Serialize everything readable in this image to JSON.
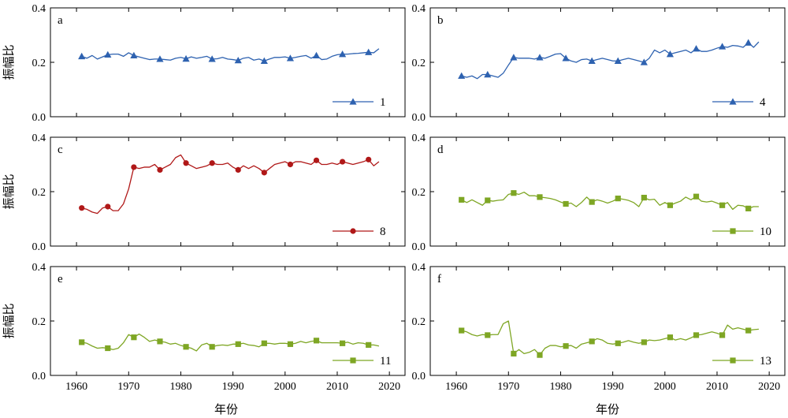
{
  "figure": {
    "x_axis_title": "年份",
    "y_axis_title": "振幅比"
  },
  "chart_data": [
    {
      "type": "line",
      "panel": "a",
      "column": 0,
      "row": 0,
      "xlim": [
        1955,
        2023
      ],
      "ylim": [
        0,
        0.4
      ],
      "xticks": [
        1960,
        1970,
        1980,
        1990,
        2000,
        2010,
        2020
      ],
      "yticks": [
        0.0,
        0.2,
        0.4
      ],
      "show_x_tick_labels": false,
      "legend_position": "bottom-right",
      "series": [
        {
          "name": "1",
          "color": "#2e62b0",
          "marker": "triangle",
          "x": [
            1961,
            1962,
            1963,
            1964,
            1965,
            1966,
            1967,
            1968,
            1969,
            1970,
            1971,
            1972,
            1973,
            1974,
            1975,
            1976,
            1977,
            1978,
            1979,
            1980,
            1981,
            1982,
            1983,
            1984,
            1985,
            1986,
            1987,
            1988,
            1989,
            1990,
            1991,
            1992,
            1993,
            1994,
            1995,
            1996,
            1997,
            1998,
            1999,
            2000,
            2001,
            2002,
            2003,
            2004,
            2005,
            2006,
            2007,
            2008,
            2009,
            2010,
            2011,
            2012,
            2013,
            2014,
            2015,
            2016,
            2017,
            2018
          ],
          "y": [
            0.222,
            0.215,
            0.225,
            0.212,
            0.22,
            0.228,
            0.23,
            0.23,
            0.222,
            0.235,
            0.225,
            0.22,
            0.215,
            0.21,
            0.212,
            0.212,
            0.21,
            0.208,
            0.215,
            0.218,
            0.213,
            0.22,
            0.215,
            0.218,
            0.222,
            0.212,
            0.213,
            0.218,
            0.212,
            0.21,
            0.207,
            0.215,
            0.218,
            0.208,
            0.212,
            0.205,
            0.212,
            0.218,
            0.218,
            0.22,
            0.215,
            0.218,
            0.222,
            0.225,
            0.215,
            0.225,
            0.21,
            0.212,
            0.222,
            0.228,
            0.23,
            0.23,
            0.232,
            0.233,
            0.235,
            0.237,
            0.235,
            0.25
          ],
          "marker_x": [
            1961,
            1966,
            1971,
            1976,
            1981,
            1986,
            1991,
            1996,
            2001,
            2006,
            2011,
            2016
          ]
        }
      ]
    },
    {
      "type": "line",
      "panel": "b",
      "column": 1,
      "row": 0,
      "xlim": [
        1955,
        2023
      ],
      "ylim": [
        0,
        0.4
      ],
      "xticks": [
        1960,
        1970,
        1980,
        1990,
        2000,
        2010,
        2020
      ],
      "yticks": [
        0.0,
        0.2,
        0.4
      ],
      "show_x_tick_labels": false,
      "legend_position": "bottom-right",
      "series": [
        {
          "name": "4",
          "color": "#2e62b0",
          "marker": "triangle",
          "x": [
            1961,
            1962,
            1963,
            1964,
            1965,
            1966,
            1967,
            1968,
            1969,
            1970,
            1971,
            1972,
            1973,
            1974,
            1975,
            1976,
            1977,
            1978,
            1979,
            1980,
            1981,
            1982,
            1983,
            1984,
            1985,
            1986,
            1987,
            1988,
            1989,
            1990,
            1991,
            1992,
            1993,
            1994,
            1995,
            1996,
            1997,
            1998,
            1999,
            2000,
            2001,
            2002,
            2003,
            2004,
            2005,
            2006,
            2007,
            2008,
            2009,
            2010,
            2011,
            2012,
            2013,
            2014,
            2015,
            2016,
            2017,
            2018
          ],
          "y": [
            0.15,
            0.145,
            0.15,
            0.14,
            0.155,
            0.155,
            0.15,
            0.145,
            0.16,
            0.19,
            0.218,
            0.215,
            0.215,
            0.215,
            0.212,
            0.218,
            0.215,
            0.222,
            0.23,
            0.232,
            0.215,
            0.205,
            0.2,
            0.21,
            0.212,
            0.205,
            0.21,
            0.215,
            0.21,
            0.205,
            0.205,
            0.21,
            0.215,
            0.21,
            0.205,
            0.2,
            0.215,
            0.245,
            0.235,
            0.245,
            0.23,
            0.235,
            0.24,
            0.245,
            0.235,
            0.25,
            0.24,
            0.24,
            0.245,
            0.252,
            0.258,
            0.255,
            0.262,
            0.26,
            0.255,
            0.272,
            0.255,
            0.275
          ],
          "marker_x": [
            1961,
            1966,
            1971,
            1976,
            1981,
            1986,
            1991,
            1996,
            2001,
            2006,
            2011,
            2016
          ]
        }
      ]
    },
    {
      "type": "line",
      "panel": "c",
      "column": 0,
      "row": 1,
      "xlim": [
        1955,
        2023
      ],
      "ylim": [
        0,
        0.4
      ],
      "xticks": [
        1960,
        1970,
        1980,
        1990,
        2000,
        2010,
        2020
      ],
      "yticks": [
        0.0,
        0.2,
        0.4
      ],
      "show_x_tick_labels": false,
      "legend_position": "bottom-right",
      "series": [
        {
          "name": "8",
          "color": "#b01818",
          "marker": "circle",
          "x": [
            1961,
            1962,
            1963,
            1964,
            1965,
            1966,
            1967,
            1968,
            1969,
            1970,
            1971,
            1972,
            1973,
            1974,
            1975,
            1976,
            1977,
            1978,
            1979,
            1980,
            1981,
            1982,
            1983,
            1984,
            1985,
            1986,
            1987,
            1988,
            1989,
            1990,
            1991,
            1992,
            1993,
            1994,
            1995,
            1996,
            1997,
            1998,
            1999,
            2000,
            2001,
            2002,
            2003,
            2004,
            2005,
            2006,
            2007,
            2008,
            2009,
            2010,
            2011,
            2012,
            2013,
            2014,
            2015,
            2016,
            2017,
            2018
          ],
          "y": [
            0.14,
            0.135,
            0.125,
            0.12,
            0.14,
            0.145,
            0.13,
            0.13,
            0.155,
            0.21,
            0.29,
            0.285,
            0.29,
            0.29,
            0.3,
            0.28,
            0.29,
            0.3,
            0.325,
            0.335,
            0.305,
            0.295,
            0.285,
            0.29,
            0.295,
            0.305,
            0.3,
            0.3,
            0.305,
            0.29,
            0.28,
            0.295,
            0.285,
            0.295,
            0.285,
            0.27,
            0.285,
            0.3,
            0.305,
            0.31,
            0.3,
            0.31,
            0.31,
            0.305,
            0.3,
            0.315,
            0.3,
            0.3,
            0.305,
            0.3,
            0.31,
            0.305,
            0.3,
            0.305,
            0.31,
            0.318,
            0.295,
            0.31
          ],
          "marker_x": [
            1961,
            1966,
            1971,
            1976,
            1981,
            1986,
            1991,
            1996,
            2001,
            2006,
            2011,
            2016
          ]
        }
      ]
    },
    {
      "type": "line",
      "panel": "d",
      "column": 1,
      "row": 1,
      "xlim": [
        1955,
        2023
      ],
      "ylim": [
        0,
        0.4
      ],
      "xticks": [
        1960,
        1970,
        1980,
        1990,
        2000,
        2010,
        2020
      ],
      "yticks": [
        0.0,
        0.2,
        0.4
      ],
      "show_x_tick_labels": false,
      "legend_position": "bottom-right",
      "series": [
        {
          "name": "10",
          "color": "#7ea624",
          "marker": "square",
          "x": [
            1961,
            1962,
            1963,
            1964,
            1965,
            1966,
            1967,
            1968,
            1969,
            1970,
            1971,
            1972,
            1973,
            1974,
            1975,
            1976,
            1977,
            1978,
            1979,
            1980,
            1981,
            1982,
            1983,
            1984,
            1985,
            1986,
            1987,
            1988,
            1989,
            1990,
            1991,
            1992,
            1993,
            1994,
            1995,
            1996,
            1997,
            1998,
            1999,
            2000,
            2001,
            2002,
            2003,
            2004,
            2005,
            2006,
            2007,
            2008,
            2009,
            2010,
            2011,
            2012,
            2013,
            2014,
            2015,
            2016,
            2017,
            2018
          ],
          "y": [
            0.17,
            0.16,
            0.17,
            0.16,
            0.15,
            0.168,
            0.165,
            0.168,
            0.17,
            0.19,
            0.195,
            0.19,
            0.198,
            0.185,
            0.185,
            0.18,
            0.178,
            0.175,
            0.17,
            0.162,
            0.155,
            0.158,
            0.145,
            0.16,
            0.18,
            0.162,
            0.17,
            0.165,
            0.158,
            0.165,
            0.175,
            0.172,
            0.168,
            0.16,
            0.145,
            0.178,
            0.17,
            0.172,
            0.15,
            0.16,
            0.15,
            0.158,
            0.165,
            0.18,
            0.17,
            0.182,
            0.165,
            0.162,
            0.165,
            0.158,
            0.15,
            0.16,
            0.135,
            0.15,
            0.148,
            0.138,
            0.145,
            0.145
          ],
          "marker_x": [
            1961,
            1966,
            1971,
            1976,
            1981,
            1986,
            1991,
            1996,
            2001,
            2006,
            2011,
            2016
          ]
        }
      ]
    },
    {
      "type": "line",
      "panel": "e",
      "column": 0,
      "row": 2,
      "xlim": [
        1955,
        2023
      ],
      "ylim": [
        0,
        0.4
      ],
      "xticks": [
        1960,
        1970,
        1980,
        1990,
        2000,
        2010,
        2020
      ],
      "yticks": [
        0.0,
        0.2,
        0.4
      ],
      "show_x_tick_labels": true,
      "legend_position": "bottom-right",
      "series": [
        {
          "name": "11",
          "color": "#7ea624",
          "marker": "square",
          "x": [
            1961,
            1962,
            1963,
            1964,
            1965,
            1966,
            1967,
            1968,
            1969,
            1970,
            1971,
            1972,
            1973,
            1974,
            1975,
            1976,
            1977,
            1978,
            1979,
            1980,
            1981,
            1982,
            1983,
            1984,
            1985,
            1986,
            1987,
            1988,
            1989,
            1990,
            1991,
            1992,
            1993,
            1994,
            1995,
            1996,
            1997,
            1998,
            1999,
            2000,
            2001,
            2002,
            2003,
            2004,
            2005,
            2006,
            2007,
            2008,
            2009,
            2010,
            2011,
            2012,
            2013,
            2014,
            2015,
            2016,
            2017,
            2018
          ],
          "y": [
            0.122,
            0.118,
            0.108,
            0.1,
            0.102,
            0.1,
            0.095,
            0.1,
            0.12,
            0.15,
            0.14,
            0.152,
            0.14,
            0.125,
            0.13,
            0.125,
            0.122,
            0.115,
            0.118,
            0.11,
            0.105,
            0.1,
            0.09,
            0.112,
            0.118,
            0.105,
            0.11,
            0.112,
            0.11,
            0.115,
            0.115,
            0.118,
            0.112,
            0.11,
            0.105,
            0.118,
            0.118,
            0.115,
            0.118,
            0.118,
            0.115,
            0.118,
            0.125,
            0.12,
            0.125,
            0.128,
            0.12,
            0.12,
            0.12,
            0.12,
            0.118,
            0.122,
            0.115,
            0.12,
            0.118,
            0.112,
            0.112,
            0.108
          ],
          "marker_x": [
            1961,
            1966,
            1971,
            1976,
            1981,
            1986,
            1991,
            1996,
            2001,
            2006,
            2011,
            2016
          ]
        }
      ]
    },
    {
      "type": "line",
      "panel": "f",
      "column": 1,
      "row": 2,
      "xlim": [
        1955,
        2023
      ],
      "ylim": [
        0,
        0.4
      ],
      "xticks": [
        1960,
        1970,
        1980,
        1990,
        2000,
        2010,
        2020
      ],
      "yticks": [
        0.0,
        0.2,
        0.4
      ],
      "show_x_tick_labels": true,
      "legend_position": "bottom-right",
      "series": [
        {
          "name": "13",
          "color": "#7ea624",
          "marker": "square",
          "x": [
            1961,
            1962,
            1963,
            1964,
            1965,
            1966,
            1967,
            1968,
            1969,
            1970,
            1971,
            1972,
            1973,
            1974,
            1975,
            1976,
            1977,
            1978,
            1979,
            1980,
            1981,
            1982,
            1983,
            1984,
            1985,
            1986,
            1987,
            1988,
            1989,
            1990,
            1991,
            1992,
            1993,
            1994,
            1995,
            1996,
            1997,
            1998,
            1999,
            2000,
            2001,
            2002,
            2003,
            2004,
            2005,
            2006,
            2007,
            2008,
            2009,
            2010,
            2011,
            2012,
            2013,
            2014,
            2015,
            2016,
            2017,
            2018
          ],
          "y": [
            0.165,
            0.16,
            0.15,
            0.145,
            0.15,
            0.148,
            0.15,
            0.15,
            0.19,
            0.2,
            0.08,
            0.095,
            0.08,
            0.085,
            0.095,
            0.075,
            0.1,
            0.11,
            0.11,
            0.105,
            0.108,
            0.11,
            0.1,
            0.115,
            0.12,
            0.125,
            0.135,
            0.13,
            0.118,
            0.115,
            0.118,
            0.122,
            0.128,
            0.122,
            0.118,
            0.122,
            0.13,
            0.128,
            0.13,
            0.135,
            0.14,
            0.13,
            0.135,
            0.13,
            0.138,
            0.148,
            0.15,
            0.155,
            0.16,
            0.155,
            0.148,
            0.185,
            0.17,
            0.175,
            0.17,
            0.165,
            0.168,
            0.17
          ],
          "marker_x": [
            1961,
            1966,
            1971,
            1976,
            1981,
            1986,
            1991,
            1996,
            2001,
            2006,
            2011,
            2016
          ]
        }
      ]
    }
  ]
}
